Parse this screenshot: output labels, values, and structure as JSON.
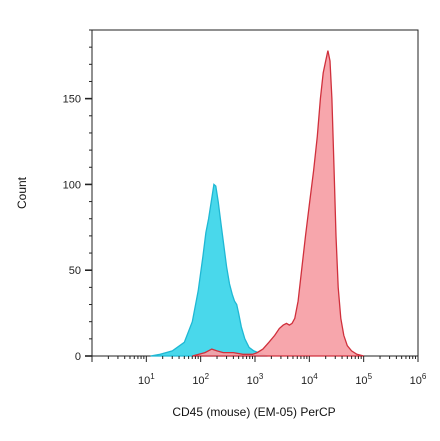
{
  "chart_data": {
    "type": "area",
    "title": "",
    "xlabel": "CD45 (mouse) (EM-05) PerCP",
    "ylabel": "Count",
    "x_scale": "log",
    "xlim": [
      1,
      1000000
    ],
    "ylim": [
      0,
      190
    ],
    "grid": false,
    "legend": "none",
    "x_ticks": [
      {
        "base": "10",
        "exp": "1",
        "value": 10
      },
      {
        "base": "10",
        "exp": "2",
        "value": 100
      },
      {
        "base": "10",
        "exp": "3",
        "value": 1000
      },
      {
        "base": "10",
        "exp": "4",
        "value": 10000
      },
      {
        "base": "10",
        "exp": "5",
        "value": 100000
      },
      {
        "base": "10",
        "exp": "6",
        "value": 1000000
      }
    ],
    "y_ticks": [
      {
        "label": "0",
        "value": 0
      },
      {
        "label": "50",
        "value": 50
      },
      {
        "label": "100",
        "value": 100
      },
      {
        "label": "150",
        "value": 150
      }
    ],
    "series": [
      {
        "fill": "#3fd6ea",
        "stroke": "#1fb8d4",
        "points": [
          [
            12,
            0
          ],
          [
            18,
            1
          ],
          [
            30,
            3
          ],
          [
            50,
            8
          ],
          [
            70,
            20
          ],
          [
            90,
            38
          ],
          [
            110,
            58
          ],
          [
            125,
            72
          ],
          [
            140,
            80
          ],
          [
            160,
            92
          ],
          [
            175,
            100
          ],
          [
            190,
            99
          ],
          [
            210,
            90
          ],
          [
            235,
            78
          ],
          [
            265,
            65
          ],
          [
            300,
            52
          ],
          [
            340,
            42
          ],
          [
            380,
            36
          ],
          [
            420,
            32
          ],
          [
            460,
            30
          ],
          [
            500,
            25
          ],
          [
            560,
            17
          ],
          [
            650,
            10
          ],
          [
            780,
            5
          ],
          [
            950,
            3
          ],
          [
            1150,
            2
          ],
          [
            1400,
            1
          ],
          [
            1700,
            0
          ]
        ]
      },
      {
        "fill": "#f7a1a8",
        "stroke": "#d0303c",
        "points": [
          [
            70,
            0
          ],
          [
            120,
            2
          ],
          [
            160,
            4
          ],
          [
            200,
            3
          ],
          [
            260,
            2
          ],
          [
            400,
            2
          ],
          [
            600,
            1
          ],
          [
            900,
            1
          ],
          [
            1100,
            2
          ],
          [
            1400,
            4
          ],
          [
            1800,
            8
          ],
          [
            2300,
            12
          ],
          [
            2800,
            16
          ],
          [
            3300,
            18
          ],
          [
            3800,
            19
          ],
          [
            4300,
            18
          ],
          [
            4800,
            19
          ],
          [
            5400,
            22
          ],
          [
            6200,
            32
          ],
          [
            7200,
            50
          ],
          [
            8500,
            70
          ],
          [
            10000,
            88
          ],
          [
            12000,
            108
          ],
          [
            14000,
            128
          ],
          [
            16000,
            150
          ],
          [
            18000,
            165
          ],
          [
            20000,
            172
          ],
          [
            22000,
            178
          ],
          [
            24000,
            172
          ],
          [
            26000,
            150
          ],
          [
            28500,
            110
          ],
          [
            31000,
            70
          ],
          [
            34000,
            40
          ],
          [
            38000,
            22
          ],
          [
            43000,
            12
          ],
          [
            50000,
            6
          ],
          [
            60000,
            3
          ],
          [
            75000,
            1
          ],
          [
            100000,
            0
          ]
        ]
      }
    ]
  }
}
